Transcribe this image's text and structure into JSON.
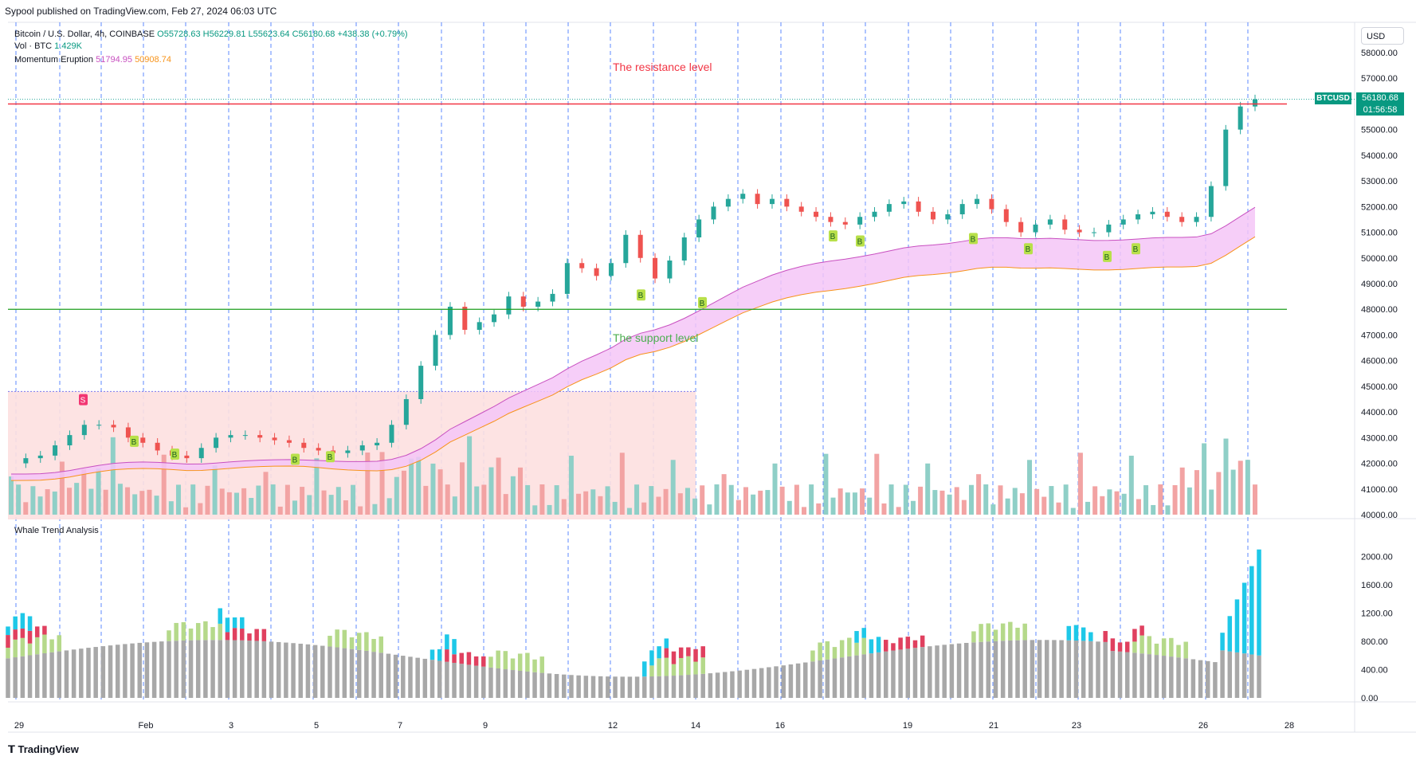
{
  "header": {
    "published": "Sypool published on TradingView.com, Feb 27, 2024 06:03 UTC"
  },
  "legend": {
    "symbol": "Bitcoin / U.S. Dollar, 4h, COINBASE",
    "ohlc": "O55728.63 H56229.81 L55623.64 C56180.68 +438.38 (+0.79%)",
    "vol_label": "Vol · BTC",
    "vol_value": "1.429K",
    "momentum_label": "Momentum Eruption",
    "momentum_val1": "51794.95",
    "momentum_val2": "50908.74",
    "whale_label": "Whale Trend Analysis"
  },
  "price_axis": {
    "currency": "USD",
    "ticks": [
      "58000.00",
      "57000.00",
      "56000.00",
      "55000.00",
      "54000.00",
      "53000.00",
      "52000.00",
      "51000.00",
      "50000.00",
      "49000.00",
      "48000.00",
      "47000.00",
      "46000.00",
      "45000.00",
      "44000.00",
      "43000.00",
      "42000.00",
      "41000.00",
      "40000.00"
    ],
    "last_symbol": "BTCUSD",
    "last_price": "56180.68",
    "countdown": "01:56:58"
  },
  "whale_axis": {
    "ticks": [
      "2000.00",
      "1600.00",
      "1200.00",
      "800.00",
      "400.00",
      "0.00"
    ]
  },
  "time_axis": {
    "labels": [
      "29",
      "Feb",
      "3",
      "5",
      "7",
      "9",
      "12",
      "14",
      "16",
      "19",
      "21",
      "23",
      "26",
      "28"
    ]
  },
  "annotations": {
    "resistance": "The resistance level",
    "support": "The support level",
    "sell_signal": "S",
    "buy_signal": "B"
  },
  "colors": {
    "up": "#26a69a",
    "down": "#ef5350",
    "resistance": "#f23645",
    "support": "#089981",
    "band_fill": "#f5c6f7",
    "band_upper": "#c850c0",
    "band_lower": "#f7931a",
    "zone_fill": "#fde0e0",
    "whale_grey": "#a8a8a8",
    "whale_green": "#b5d98a",
    "whale_red": "#e0405f",
    "whale_cyan": "#1ec8e8",
    "buy_badge": "#b8e04a",
    "sell_badge": "#f23672"
  },
  "footer": {
    "brand": "TradingView"
  },
  "chart_data": {
    "type": "candlestick",
    "timeframe": "4h",
    "ylim": [
      40000,
      58000
    ],
    "candles_close_path": [
      42000,
      42200,
      42300,
      42700,
      43100,
      43500,
      43500,
      43400,
      43000,
      42800,
      42500,
      42300,
      42200,
      42600,
      43000,
      43100,
      43100,
      43000,
      42900,
      42800,
      42600,
      42500,
      42400,
      42500,
      42700,
      42800,
      43500,
      44500,
      45800,
      47000,
      48100,
      47200,
      47500,
      47800,
      48500,
      48100,
      48300,
      48600,
      49800,
      49600,
      49300,
      49800,
      50900,
      50000,
      49200,
      49900,
      50800,
      51500,
      52000,
      52300,
      52500,
      52100,
      52300,
      52000,
      51800,
      51600,
      51400,
      51300,
      51600,
      51800,
      52100,
      52200,
      51800,
      51500,
      51700,
      52100,
      52300,
      51900,
      51400,
      51000,
      51300,
      51500,
      51100,
      51000,
      51000,
      51300,
      51500,
      51700,
      51800,
      51600,
      51400,
      51600,
      52800,
      55000,
      55900,
      56180
    ],
    "resistance": 56000,
    "support": 48000,
    "whale_ylim": [
      0,
      2300
    ]
  }
}
